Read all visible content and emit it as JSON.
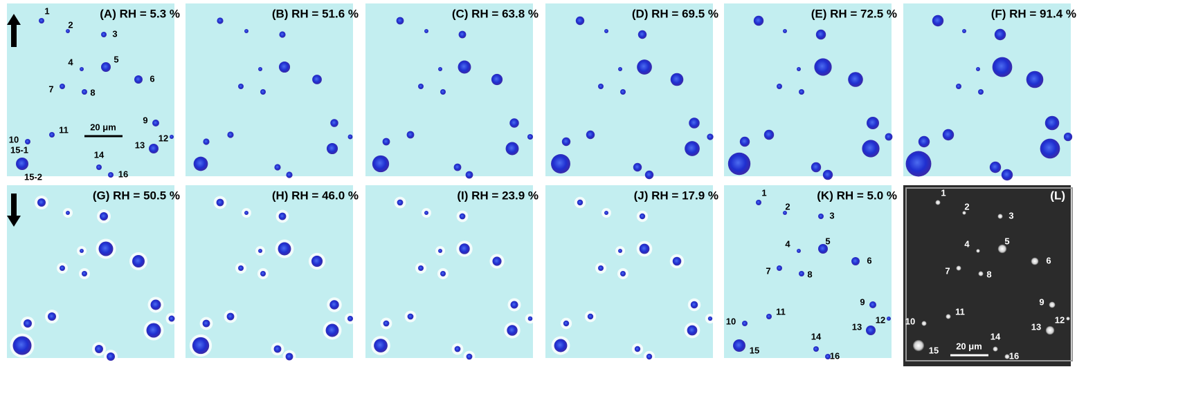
{
  "panels": [
    {
      "title": "(A) RH = 5.3 %",
      "labels": [
        "1",
        "2",
        "3",
        "4",
        "5",
        "6",
        "7",
        "8",
        "9",
        "10",
        "11",
        "12",
        "13",
        "14",
        "15-1",
        "15-2",
        "16"
      ],
      "scale_bar": "20 μm"
    },
    {
      "title": "(B) RH = 51.6 %"
    },
    {
      "title": "(C) RH = 63.8 %"
    },
    {
      "title": "(D) RH = 69.5 %"
    },
    {
      "title": "(E) RH = 72.5 %"
    },
    {
      "title": "(F) RH = 91.4 %"
    },
    {
      "title": "(G) RH = 50.5 %"
    },
    {
      "title": "(H) RH = 46.0 %"
    },
    {
      "title": "(I) RH = 23.9 %"
    },
    {
      "title": "(J) RH = 17.9 %"
    },
    {
      "title": "(K) RH = 5.0 %",
      "labels": [
        "1",
        "2",
        "3",
        "4",
        "5",
        "6",
        "7",
        "8",
        "9",
        "10",
        "11",
        "12",
        "13",
        "14",
        "15",
        "16"
      ]
    },
    {
      "title": "(L)",
      "labels": [
        "1",
        "2",
        "3",
        "4",
        "5",
        "6",
        "7",
        "8",
        "9",
        "10",
        "11",
        "12",
        "13",
        "14",
        "15",
        "16"
      ],
      "scale_bar": "20 μm"
    }
  ]
}
